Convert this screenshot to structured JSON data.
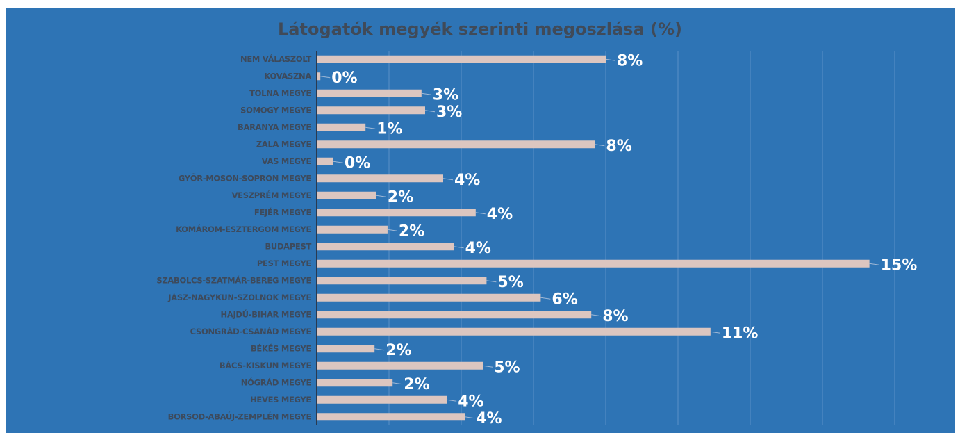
{
  "chart_data": {
    "type": "bar",
    "orientation": "horizontal",
    "title": "Látogatók megyék szerinti megoszlása (%)",
    "categories": [
      "NEM VÁLASZOLT",
      "KOVÁSZNA",
      "TOLNA MEGYE",
      "SOMOGY MEGYE",
      "BARANYA MEGYE",
      "ZALA MEGYE",
      "VAS MEGYE",
      "GYŐR-MOSON-SOPRON MEGYE",
      "VESZPRÉM MEGYE",
      "FEJÉR MEGYE",
      "KOMÁROM-ESZTERGOM MEGYE",
      "BUDAPEST",
      "PEST MEGYE",
      "SZABOLCS-SZATMÁR-BEREG MEGYE",
      "JÁSZ-NAGYKUN-SZOLNOK MEGYE",
      "HAJDÚ-BIHAR MEGYE",
      "CSONGRÁD-CSANÁD MEGYE",
      "BÉKÉS MEGYE",
      "BÁCS-KISKUN MEGYE",
      "NÓGRÁD MEGYE",
      "HEVES MEGYE",
      "BORSOD-ABAÚJ-ZEMPLÉN MEGYE"
    ],
    "values": [
      8.0,
      0.1,
      2.9,
      3.0,
      1.35,
      7.7,
      0.46,
      3.5,
      1.65,
      4.4,
      1.96,
      3.8,
      15.3,
      4.7,
      6.2,
      7.6,
      10.9,
      1.6,
      4.6,
      2.1,
      3.6,
      4.1
    ],
    "value_labels": [
      "8%",
      "0%",
      "3%",
      "3%",
      "1%",
      "8%",
      "0%",
      "4%",
      "2%",
      "4%",
      "2%",
      "4%",
      "15%",
      "5%",
      "6%",
      "8%",
      "11%",
      "2%",
      "5%",
      "2%",
      "4%",
      "4%"
    ],
    "color": "#dcc6c0",
    "xlim": [
      0,
      16
    ],
    "xticks": [
      0,
      2,
      4,
      6,
      8,
      10,
      12,
      14,
      16
    ],
    "grid": true
  }
}
